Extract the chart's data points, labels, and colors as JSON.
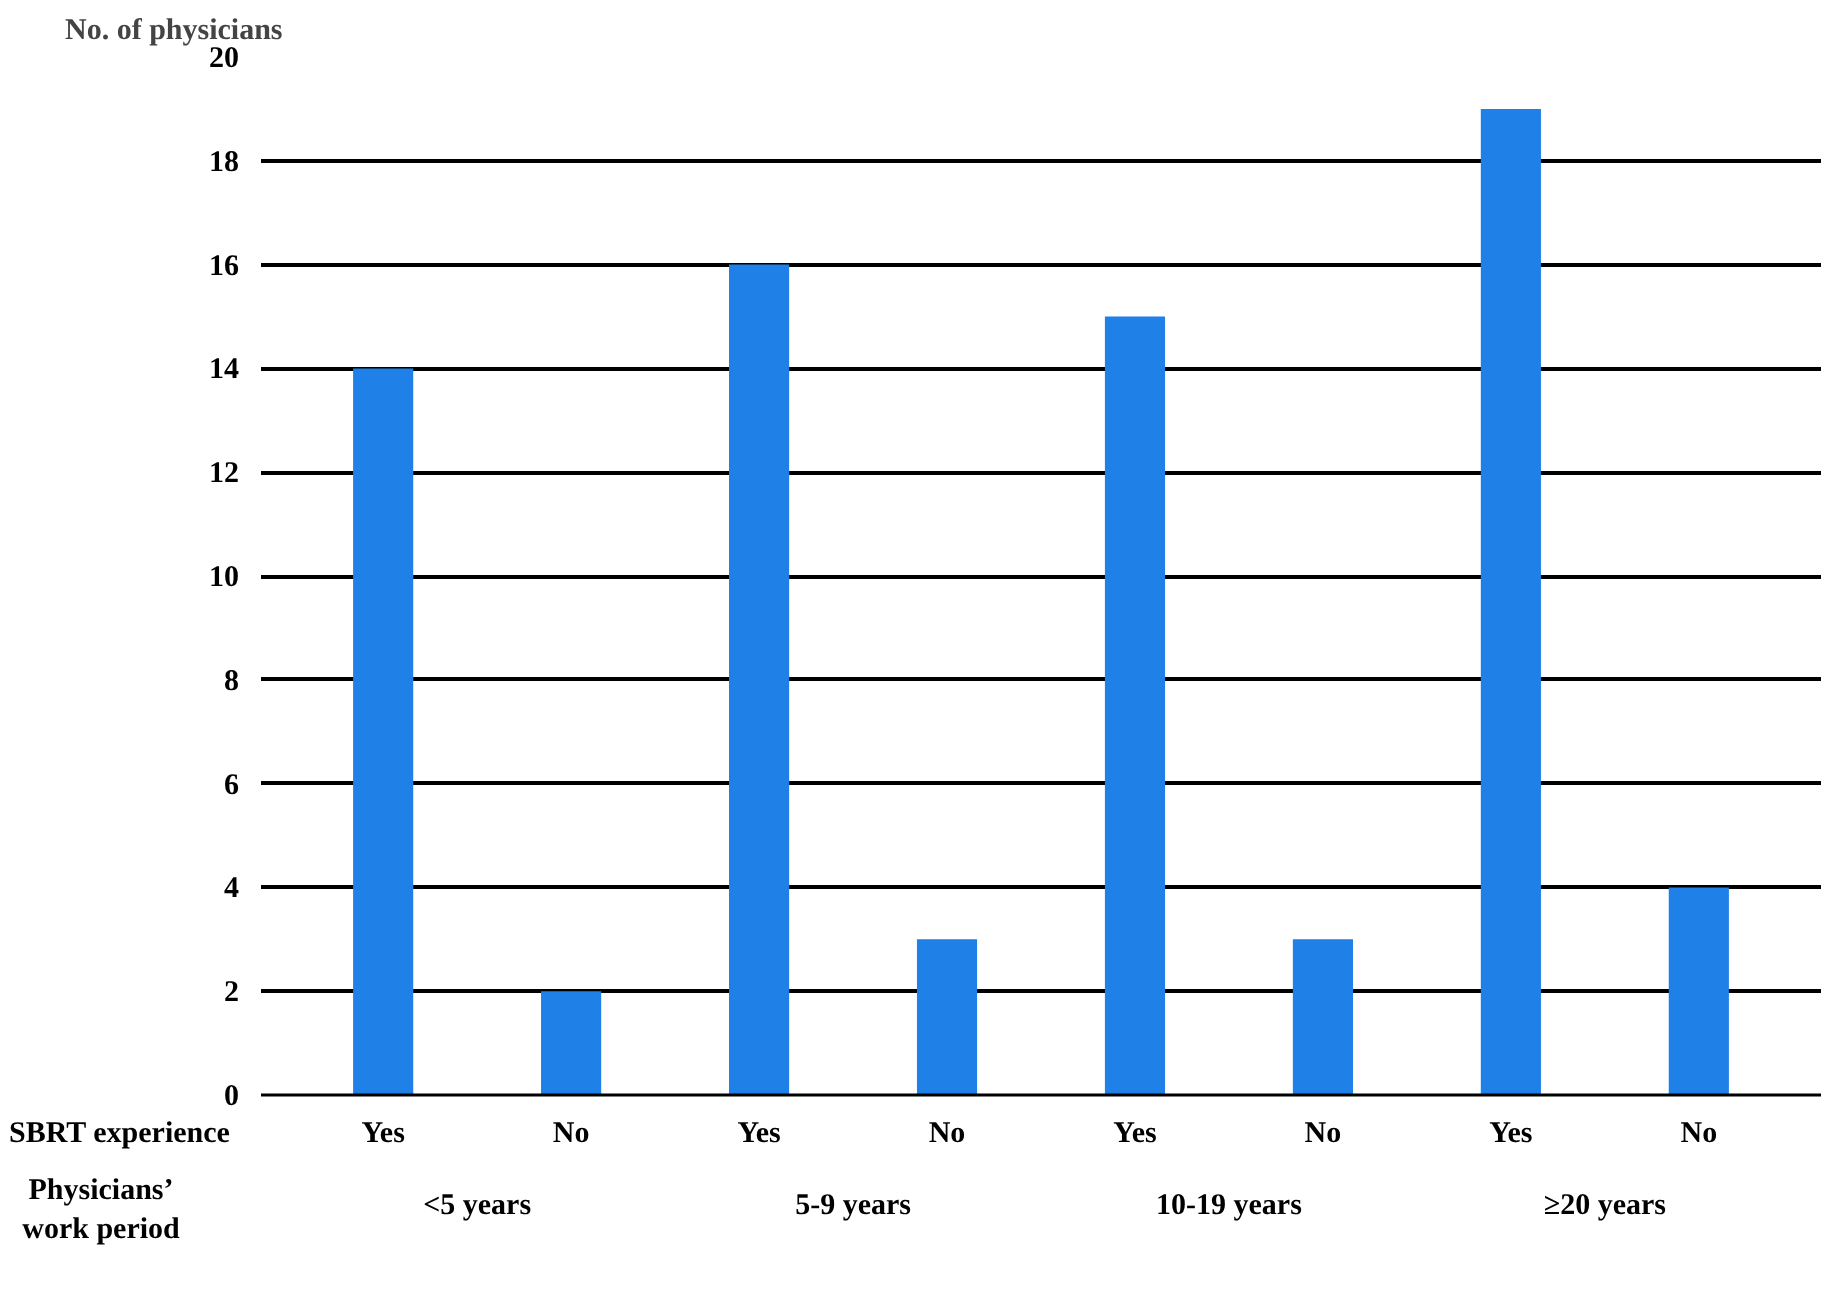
{
  "chart_data": {
    "type": "bar",
    "ylabel": "No. of physicians",
    "xlabel": "SBRT experience",
    "categories": [
      "Yes",
      "No",
      "Yes",
      "No",
      "Yes",
      "No",
      "Yes",
      "No"
    ],
    "values": [
      14,
      2,
      16,
      3,
      15,
      3,
      19,
      4
    ],
    "color": "#1f80e8",
    "ylim": [
      0,
      20
    ],
    "yticks": [
      0,
      2,
      4,
      6,
      8,
      10,
      12,
      14,
      16,
      18,
      20
    ],
    "grid": "y",
    "annotations": [
      "Physicians’\nwork period",
      "<5 years",
      "5-9 years",
      "10-19 years",
      "≥20 years"
    ]
  }
}
